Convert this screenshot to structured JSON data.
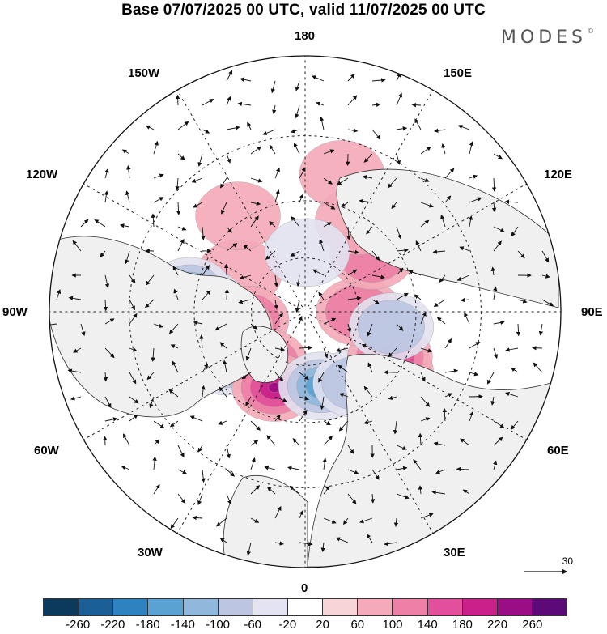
{
  "title": "Base 07/07/2025 00 UTC, valid 11/07/2025 00 UTC",
  "brand": "MODES",
  "brand_mark": "©",
  "longitude_labels": {
    "top": "180",
    "bottom": "0",
    "left": "90W",
    "right": "90E",
    "upper_left_1": "150W",
    "upper_left_2": "120W",
    "upper_right_1": "150E",
    "upper_right_2": "120E",
    "lower_left_1": "60W",
    "lower_left_2": "30W",
    "lower_right_1": "60E",
    "lower_right_2": "30E"
  },
  "vector_scale_label": "30",
  "colorbar": {
    "colors": [
      "#0c3a5c",
      "#1c5f96",
      "#2e82bf",
      "#5aa2d1",
      "#8fb8dc",
      "#bcc6e2",
      "#e3e3f1",
      "#ffffff",
      "#f7d4d7",
      "#f4aab8",
      "#ee7fa6",
      "#e34f9a",
      "#c9208a",
      "#9a0d85",
      "#5c0a78"
    ],
    "ticks": [
      "-260",
      "-220",
      "-180",
      "-140",
      "-100",
      "-60",
      "-20",
      "20",
      "60",
      "100",
      "140",
      "180",
      "220",
      "260"
    ]
  },
  "anomalies": [
    {
      "lon": -120,
      "lat": 62,
      "value": 60
    },
    {
      "lon": -145,
      "lat": 48,
      "value": 60
    },
    {
      "lon": -95,
      "lat": 53,
      "value": -140
    },
    {
      "lon": -100,
      "lat": 48,
      "value": -220
    },
    {
      "lon": -82,
      "lat": 68,
      "value": 120
    },
    {
      "lon": -78,
      "lat": 62,
      "value": 180
    },
    {
      "lon": -58,
      "lat": 56,
      "value": -160
    },
    {
      "lon": -38,
      "lat": 66,
      "value": 140
    },
    {
      "lon": -22,
      "lat": 60,
      "value": 200
    },
    {
      "lon": 12,
      "lat": 62,
      "value": -200
    },
    {
      "lon": 35,
      "lat": 58,
      "value": -80
    },
    {
      "lon": 55,
      "lat": 52,
      "value": 140
    },
    {
      "lon": 62,
      "lat": 55,
      "value": 180
    },
    {
      "lon": 90,
      "lat": 70,
      "value": 100
    },
    {
      "lon": 80,
      "lat": 58,
      "value": -80
    },
    {
      "lon": 130,
      "lat": 58,
      "value": 100
    },
    {
      "lon": 150,
      "lat": 52,
      "value": 60
    },
    {
      "lon": 178,
      "lat": 68,
      "value": -60
    },
    {
      "lon": 165,
      "lat": 40,
      "value": 60
    },
    {
      "lon": 40,
      "lat": 35,
      "value": 60
    }
  ]
}
